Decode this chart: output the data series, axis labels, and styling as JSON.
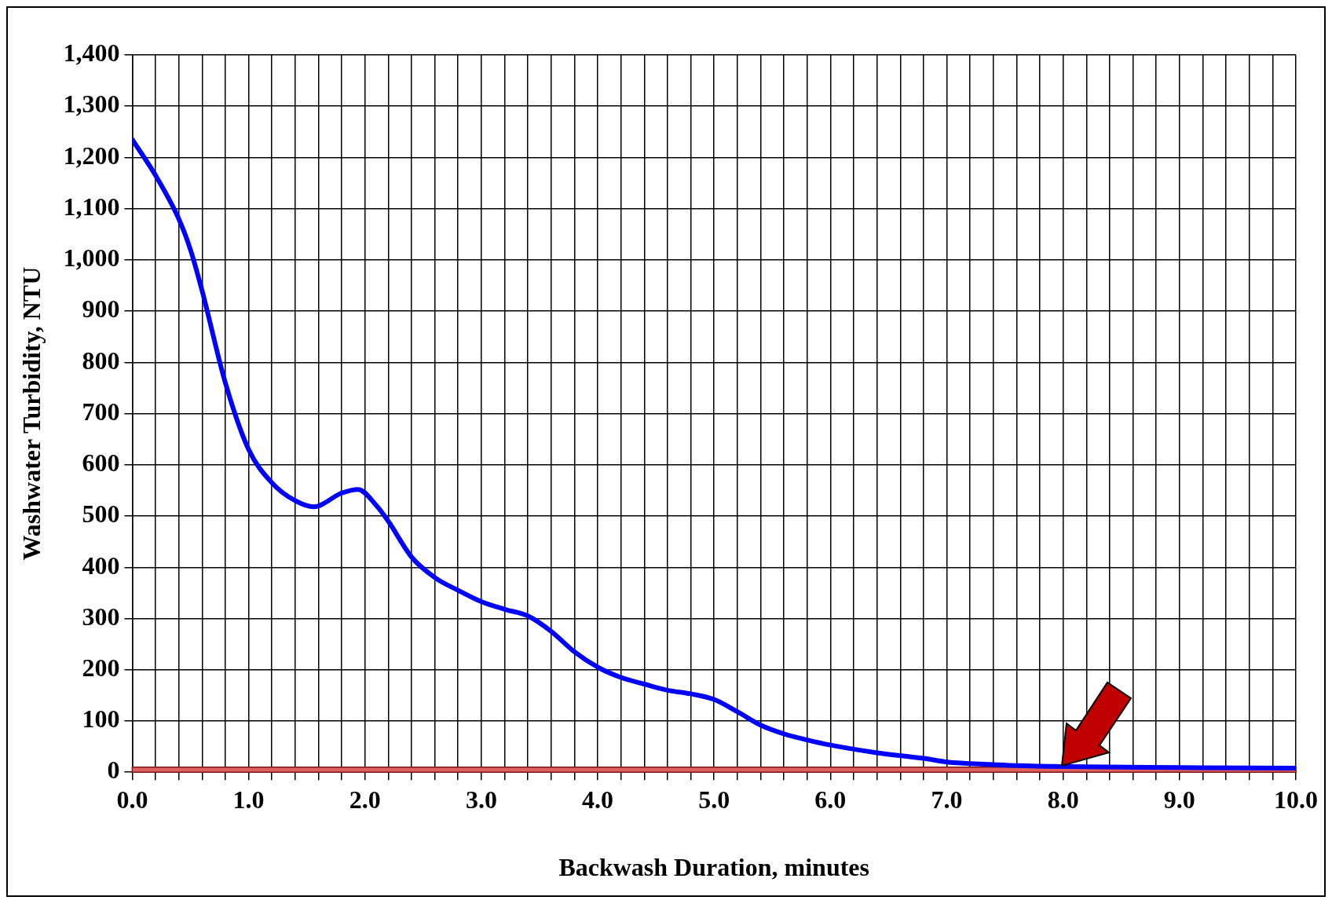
{
  "chart_data": {
    "type": "line",
    "xlabel": "Backwash Duration, minutes",
    "ylabel": "Washwater Turbidity, NTU",
    "xlim": [
      0,
      10
    ],
    "ylim": [
      0,
      1400
    ],
    "xticks": [
      {
        "value": 0,
        "label": "0.0"
      },
      {
        "value": 0.2,
        "label": null
      },
      {
        "value": 0.4,
        "label": null
      },
      {
        "value": 0.6,
        "label": null
      },
      {
        "value": 0.8,
        "label": null
      },
      {
        "value": 1,
        "label": "1.0"
      },
      {
        "value": 1.2,
        "label": null
      },
      {
        "value": 1.4,
        "label": null
      },
      {
        "value": 1.6,
        "label": null
      },
      {
        "value": 1.8,
        "label": null
      },
      {
        "value": 2,
        "label": "2.0"
      },
      {
        "value": 2.2,
        "label": null
      },
      {
        "value": 2.4,
        "label": null
      },
      {
        "value": 2.6,
        "label": null
      },
      {
        "value": 2.8,
        "label": null
      },
      {
        "value": 3,
        "label": "3.0"
      },
      {
        "value": 3.2,
        "label": null
      },
      {
        "value": 3.4,
        "label": null
      },
      {
        "value": 3.6,
        "label": null
      },
      {
        "value": 3.8,
        "label": null
      },
      {
        "value": 4,
        "label": "4.0"
      },
      {
        "value": 4.2,
        "label": null
      },
      {
        "value": 4.4,
        "label": null
      },
      {
        "value": 4.6,
        "label": null
      },
      {
        "value": 4.8,
        "label": null
      },
      {
        "value": 5,
        "label": "5.0"
      },
      {
        "value": 5.2,
        "label": null
      },
      {
        "value": 5.4,
        "label": null
      },
      {
        "value": 5.6,
        "label": null
      },
      {
        "value": 5.8,
        "label": null
      },
      {
        "value": 6,
        "label": "6.0"
      },
      {
        "value": 6.2,
        "label": null
      },
      {
        "value": 6.4,
        "label": null
      },
      {
        "value": 6.6,
        "label": null
      },
      {
        "value": 6.8,
        "label": null
      },
      {
        "value": 7,
        "label": "7.0"
      },
      {
        "value": 7.2,
        "label": null
      },
      {
        "value": 7.4,
        "label": null
      },
      {
        "value": 7.6,
        "label": null
      },
      {
        "value": 7.8,
        "label": null
      },
      {
        "value": 8,
        "label": "8.0"
      },
      {
        "value": 8.2,
        "label": null
      },
      {
        "value": 8.4,
        "label": null
      },
      {
        "value": 8.6,
        "label": null
      },
      {
        "value": 8.8,
        "label": null
      },
      {
        "value": 9,
        "label": "9.0"
      },
      {
        "value": 9.2,
        "label": null
      },
      {
        "value": 9.4,
        "label": null
      },
      {
        "value": 9.6,
        "label": null
      },
      {
        "value": 9.8,
        "label": null
      },
      {
        "value": 10,
        "label": "10.0"
      }
    ],
    "yticks": [
      {
        "value": 0,
        "label": "0"
      },
      {
        "value": 100,
        "label": "100"
      },
      {
        "value": 200,
        "label": "200"
      },
      {
        "value": 300,
        "label": "300"
      },
      {
        "value": 400,
        "label": "400"
      },
      {
        "value": 500,
        "label": "500"
      },
      {
        "value": 600,
        "label": "600"
      },
      {
        "value": 700,
        "label": "700"
      },
      {
        "value": 800,
        "label": "800"
      },
      {
        "value": 900,
        "label": "900"
      },
      {
        "value": 1000,
        "label": "1,000"
      },
      {
        "value": 1100,
        "label": "1,100"
      },
      {
        "value": 1200,
        "label": "1,200"
      },
      {
        "value": 1300,
        "label": "1,300"
      },
      {
        "value": 1400,
        "label": "1,400"
      }
    ],
    "grid": true,
    "legend": false,
    "marker": "none",
    "line_style": "solid",
    "bands": [
      {
        "axis": "y",
        "from": 0,
        "to": 10,
        "color": "#e06060"
      }
    ],
    "series": [
      {
        "color": "#0000ff",
        "x": [
          0,
          0.2,
          0.4,
          0.5,
          0.6,
          0.8,
          1.0,
          1.2,
          1.4,
          1.56,
          1.8,
          1.94,
          2.1,
          2.2,
          2.4,
          2.6,
          2.8,
          3.0,
          3.2,
          3.4,
          3.6,
          3.8,
          4.0,
          4.2,
          4.4,
          4.6,
          4.8,
          5.0,
          5.2,
          5.4,
          5.6,
          5.8,
          6.0,
          6.4,
          6.8,
          7.0,
          7.4,
          7.6,
          8.0,
          9.0,
          10.0
        ],
        "values": [
          1235,
          1165,
          1080,
          1020,
          940,
          760,
          630,
          565,
          530,
          518,
          545,
          552,
          520,
          490,
          420,
          380,
          355,
          333,
          318,
          305,
          275,
          235,
          205,
          185,
          172,
          160,
          153,
          142,
          118,
          92,
          75,
          63,
          53,
          38,
          27,
          20,
          15,
          13,
          11,
          9,
          8
        ]
      }
    ]
  }
}
